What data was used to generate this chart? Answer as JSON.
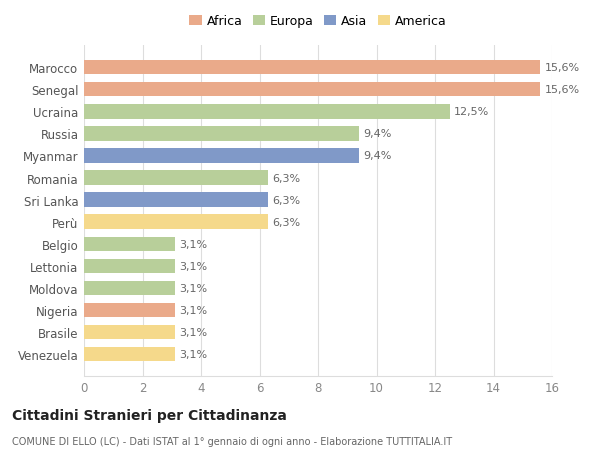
{
  "categories": [
    "Venezuela",
    "Brasile",
    "Nigeria",
    "Moldova",
    "Lettonia",
    "Belgio",
    "Perù",
    "Sri Lanka",
    "Romania",
    "Myanmar",
    "Russia",
    "Ucraina",
    "Senegal",
    "Marocco"
  ],
  "values": [
    3.1,
    3.1,
    3.1,
    3.1,
    3.1,
    3.1,
    6.3,
    6.3,
    6.3,
    9.4,
    9.4,
    12.5,
    15.6,
    15.6
  ],
  "labels": [
    "3,1%",
    "3,1%",
    "3,1%",
    "3,1%",
    "3,1%",
    "3,1%",
    "6,3%",
    "6,3%",
    "6,3%",
    "9,4%",
    "9,4%",
    "12,5%",
    "15,6%",
    "15,6%"
  ],
  "colors": [
    "#F5D98B",
    "#F5D98B",
    "#EAAA8A",
    "#B8CF9A",
    "#B8CF9A",
    "#B8CF9A",
    "#F5D98B",
    "#8099C8",
    "#B8CF9A",
    "#8099C8",
    "#B8CF9A",
    "#B8CF9A",
    "#EAAA8A",
    "#EAAA8A"
  ],
  "legend_labels": [
    "Africa",
    "Europa",
    "Asia",
    "America"
  ],
  "legend_colors": [
    "#EAAA8A",
    "#B8CF9A",
    "#8099C8",
    "#F5D98B"
  ],
  "title": "Cittadini Stranieri per Cittadinanza",
  "subtitle": "COMUNE DI ELLO (LC) - Dati ISTAT al 1° gennaio di ogni anno - Elaborazione TUTTITALIA.IT",
  "xlim": [
    0,
    16
  ],
  "xticks": [
    0,
    2,
    4,
    6,
    8,
    10,
    12,
    14,
    16
  ],
  "bg_color": "#ffffff",
  "grid_color": "#dddddd"
}
